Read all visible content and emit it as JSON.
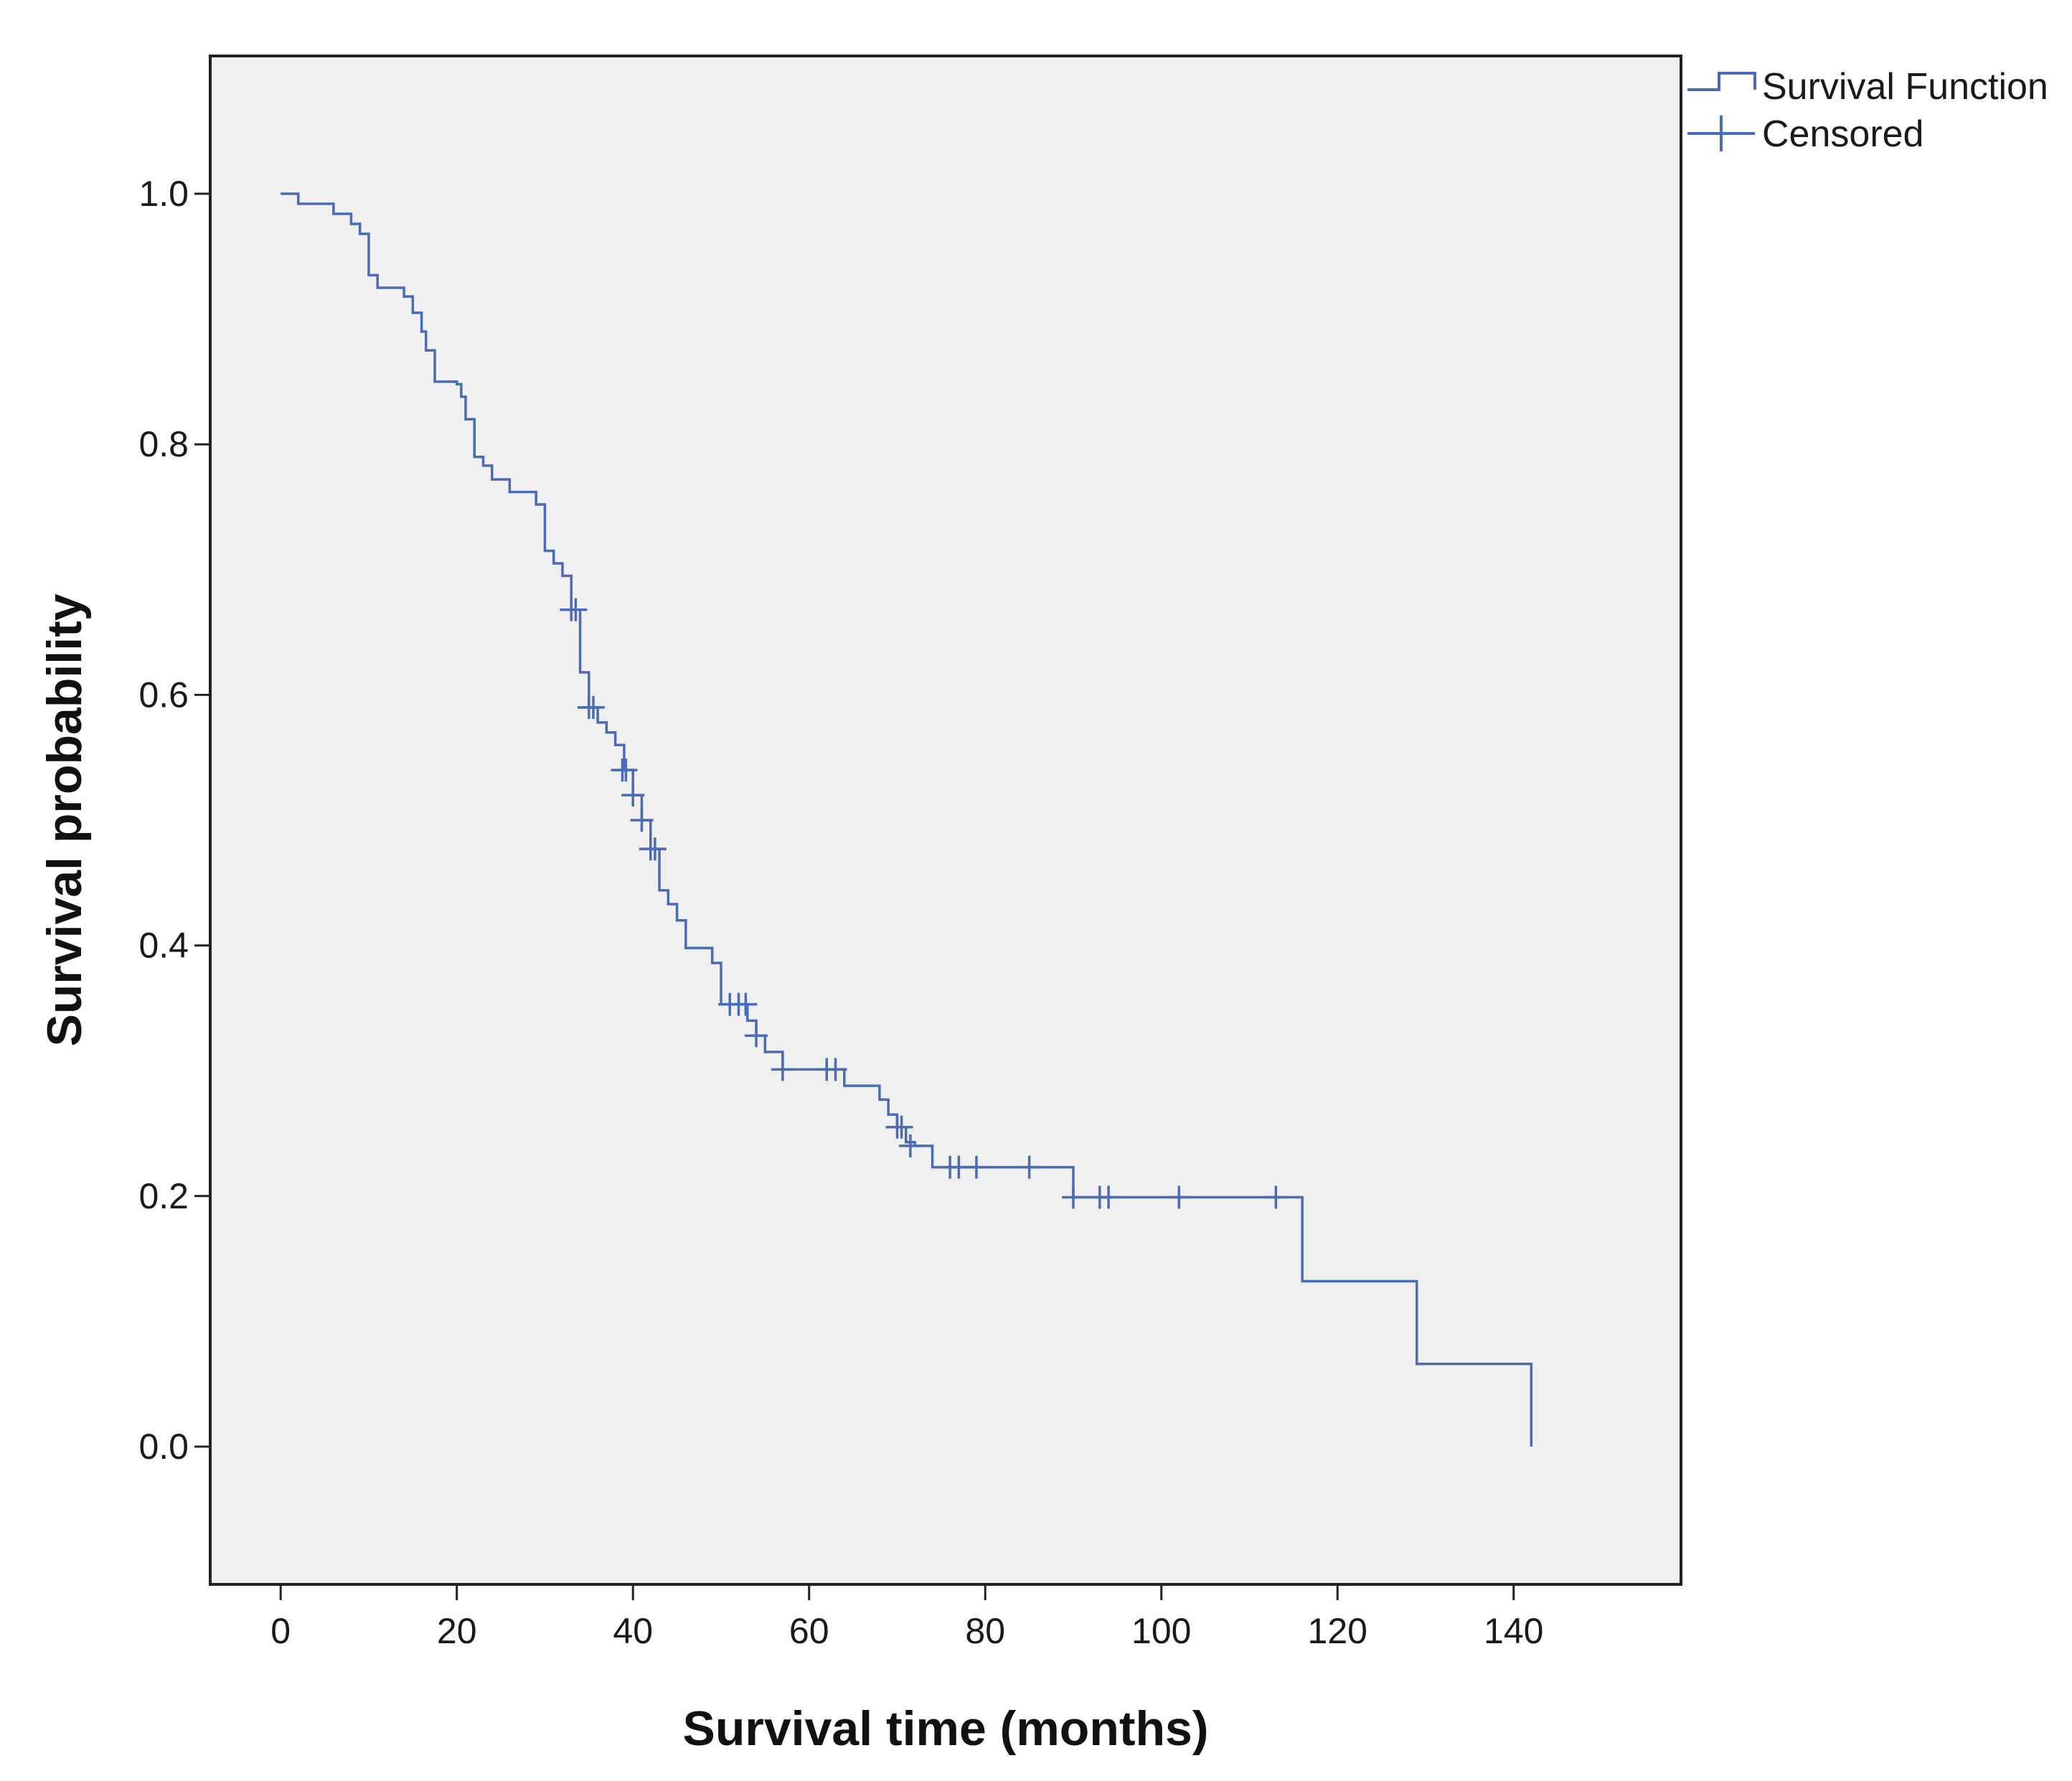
{
  "chart_data": {
    "type": "line",
    "subtype": "kaplan-meier-step",
    "title": "",
    "xlabel": "Survival time (months)",
    "ylabel": "Survival probability",
    "xlim": [
      -8,
      159
    ],
    "ylim": [
      -0.11,
      1.11
    ],
    "xticks": [
      0,
      20,
      40,
      60,
      80,
      100,
      120,
      140
    ],
    "xtick_labels": [
      "0",
      "20",
      "40",
      "60",
      "80",
      "100",
      "120",
      "140"
    ],
    "yticks": [
      0.0,
      0.2,
      0.4,
      0.6,
      0.8,
      1.0
    ],
    "ytick_labels": [
      "0.0",
      "0.2",
      "0.4",
      "0.6",
      "0.8",
      "1.0"
    ],
    "grid": false,
    "legend_position": "top-right, outside plot area",
    "series": [
      {
        "name": "Survival Function",
        "kind": "step",
        "points": [
          [
            0,
            1.0
          ],
          [
            2,
            0.992
          ],
          [
            6,
            0.984
          ],
          [
            8,
            0.976
          ],
          [
            9,
            0.968
          ],
          [
            10,
            0.96
          ],
          [
            10,
            0.935
          ],
          [
            11,
            0.925
          ],
          [
            14,
            0.918
          ],
          [
            15,
            0.905
          ],
          [
            16,
            0.89
          ],
          [
            16.5,
            0.875
          ],
          [
            17.5,
            0.85
          ],
          [
            20,
            0.848
          ],
          [
            20.5,
            0.838
          ],
          [
            21,
            0.82
          ],
          [
            22,
            0.79
          ],
          [
            23,
            0.783
          ],
          [
            24,
            0.772
          ],
          [
            26,
            0.762
          ],
          [
            29,
            0.752
          ],
          [
            30,
            0.715
          ],
          [
            31,
            0.705
          ],
          [
            32,
            0.695
          ],
          [
            33,
            0.668
          ],
          [
            34,
            0.618
          ],
          [
            35,
            0.59
          ],
          [
            36,
            0.578
          ],
          [
            37,
            0.57
          ],
          [
            38,
            0.56
          ],
          [
            39,
            0.54
          ],
          [
            40,
            0.52
          ],
          [
            41,
            0.5
          ],
          [
            42,
            0.477
          ],
          [
            43,
            0.444
          ],
          [
            44,
            0.433
          ],
          [
            45,
            0.42
          ],
          [
            46,
            0.398
          ],
          [
            49,
            0.386
          ],
          [
            50,
            0.353
          ],
          [
            51,
            0.353
          ],
          [
            52,
            0.353
          ],
          [
            53,
            0.34
          ],
          [
            54,
            0.328
          ],
          [
            55,
            0.315
          ],
          [
            57,
            0.301
          ],
          [
            63,
            0.301
          ],
          [
            64,
            0.288
          ],
          [
            68,
            0.277
          ],
          [
            69,
            0.265
          ],
          [
            70,
            0.255
          ],
          [
            71,
            0.243
          ],
          [
            72,
            0.24
          ],
          [
            74,
            0.223
          ],
          [
            90,
            0.199
          ],
          [
            116,
            0.132
          ],
          [
            129,
            0.066
          ],
          [
            142,
            0.0
          ]
        ],
        "end_x": 142,
        "color": "#4a6bb5"
      },
      {
        "name": "Censored",
        "kind": "marker",
        "marker": "+",
        "points": [
          [
            33,
            0.668
          ],
          [
            33.5,
            0.668
          ],
          [
            35,
            0.59
          ],
          [
            35.5,
            0.59
          ],
          [
            38.8,
            0.54
          ],
          [
            39.2,
            0.54
          ],
          [
            40,
            0.52
          ],
          [
            41,
            0.5
          ],
          [
            42,
            0.477
          ],
          [
            42.5,
            0.477
          ],
          [
            51,
            0.353
          ],
          [
            52,
            0.353
          ],
          [
            52.8,
            0.353
          ],
          [
            54,
            0.328
          ],
          [
            57,
            0.301
          ],
          [
            62,
            0.301
          ],
          [
            63,
            0.301
          ],
          [
            70,
            0.255
          ],
          [
            70.5,
            0.255
          ],
          [
            71.5,
            0.24
          ],
          [
            76,
            0.223
          ],
          [
            77,
            0.223
          ],
          [
            79,
            0.223
          ],
          [
            85,
            0.223
          ],
          [
            90,
            0.199
          ],
          [
            93,
            0.199
          ],
          [
            94,
            0.199
          ],
          [
            102,
            0.199
          ],
          [
            113,
            0.199
          ]
        ],
        "color": "#4a6bb5"
      }
    ]
  },
  "style": {
    "plot_background": "#f0f0f0",
    "frame_color": "#222222",
    "line_color": "#4a6bb5",
    "page_background": "#ffffff"
  }
}
